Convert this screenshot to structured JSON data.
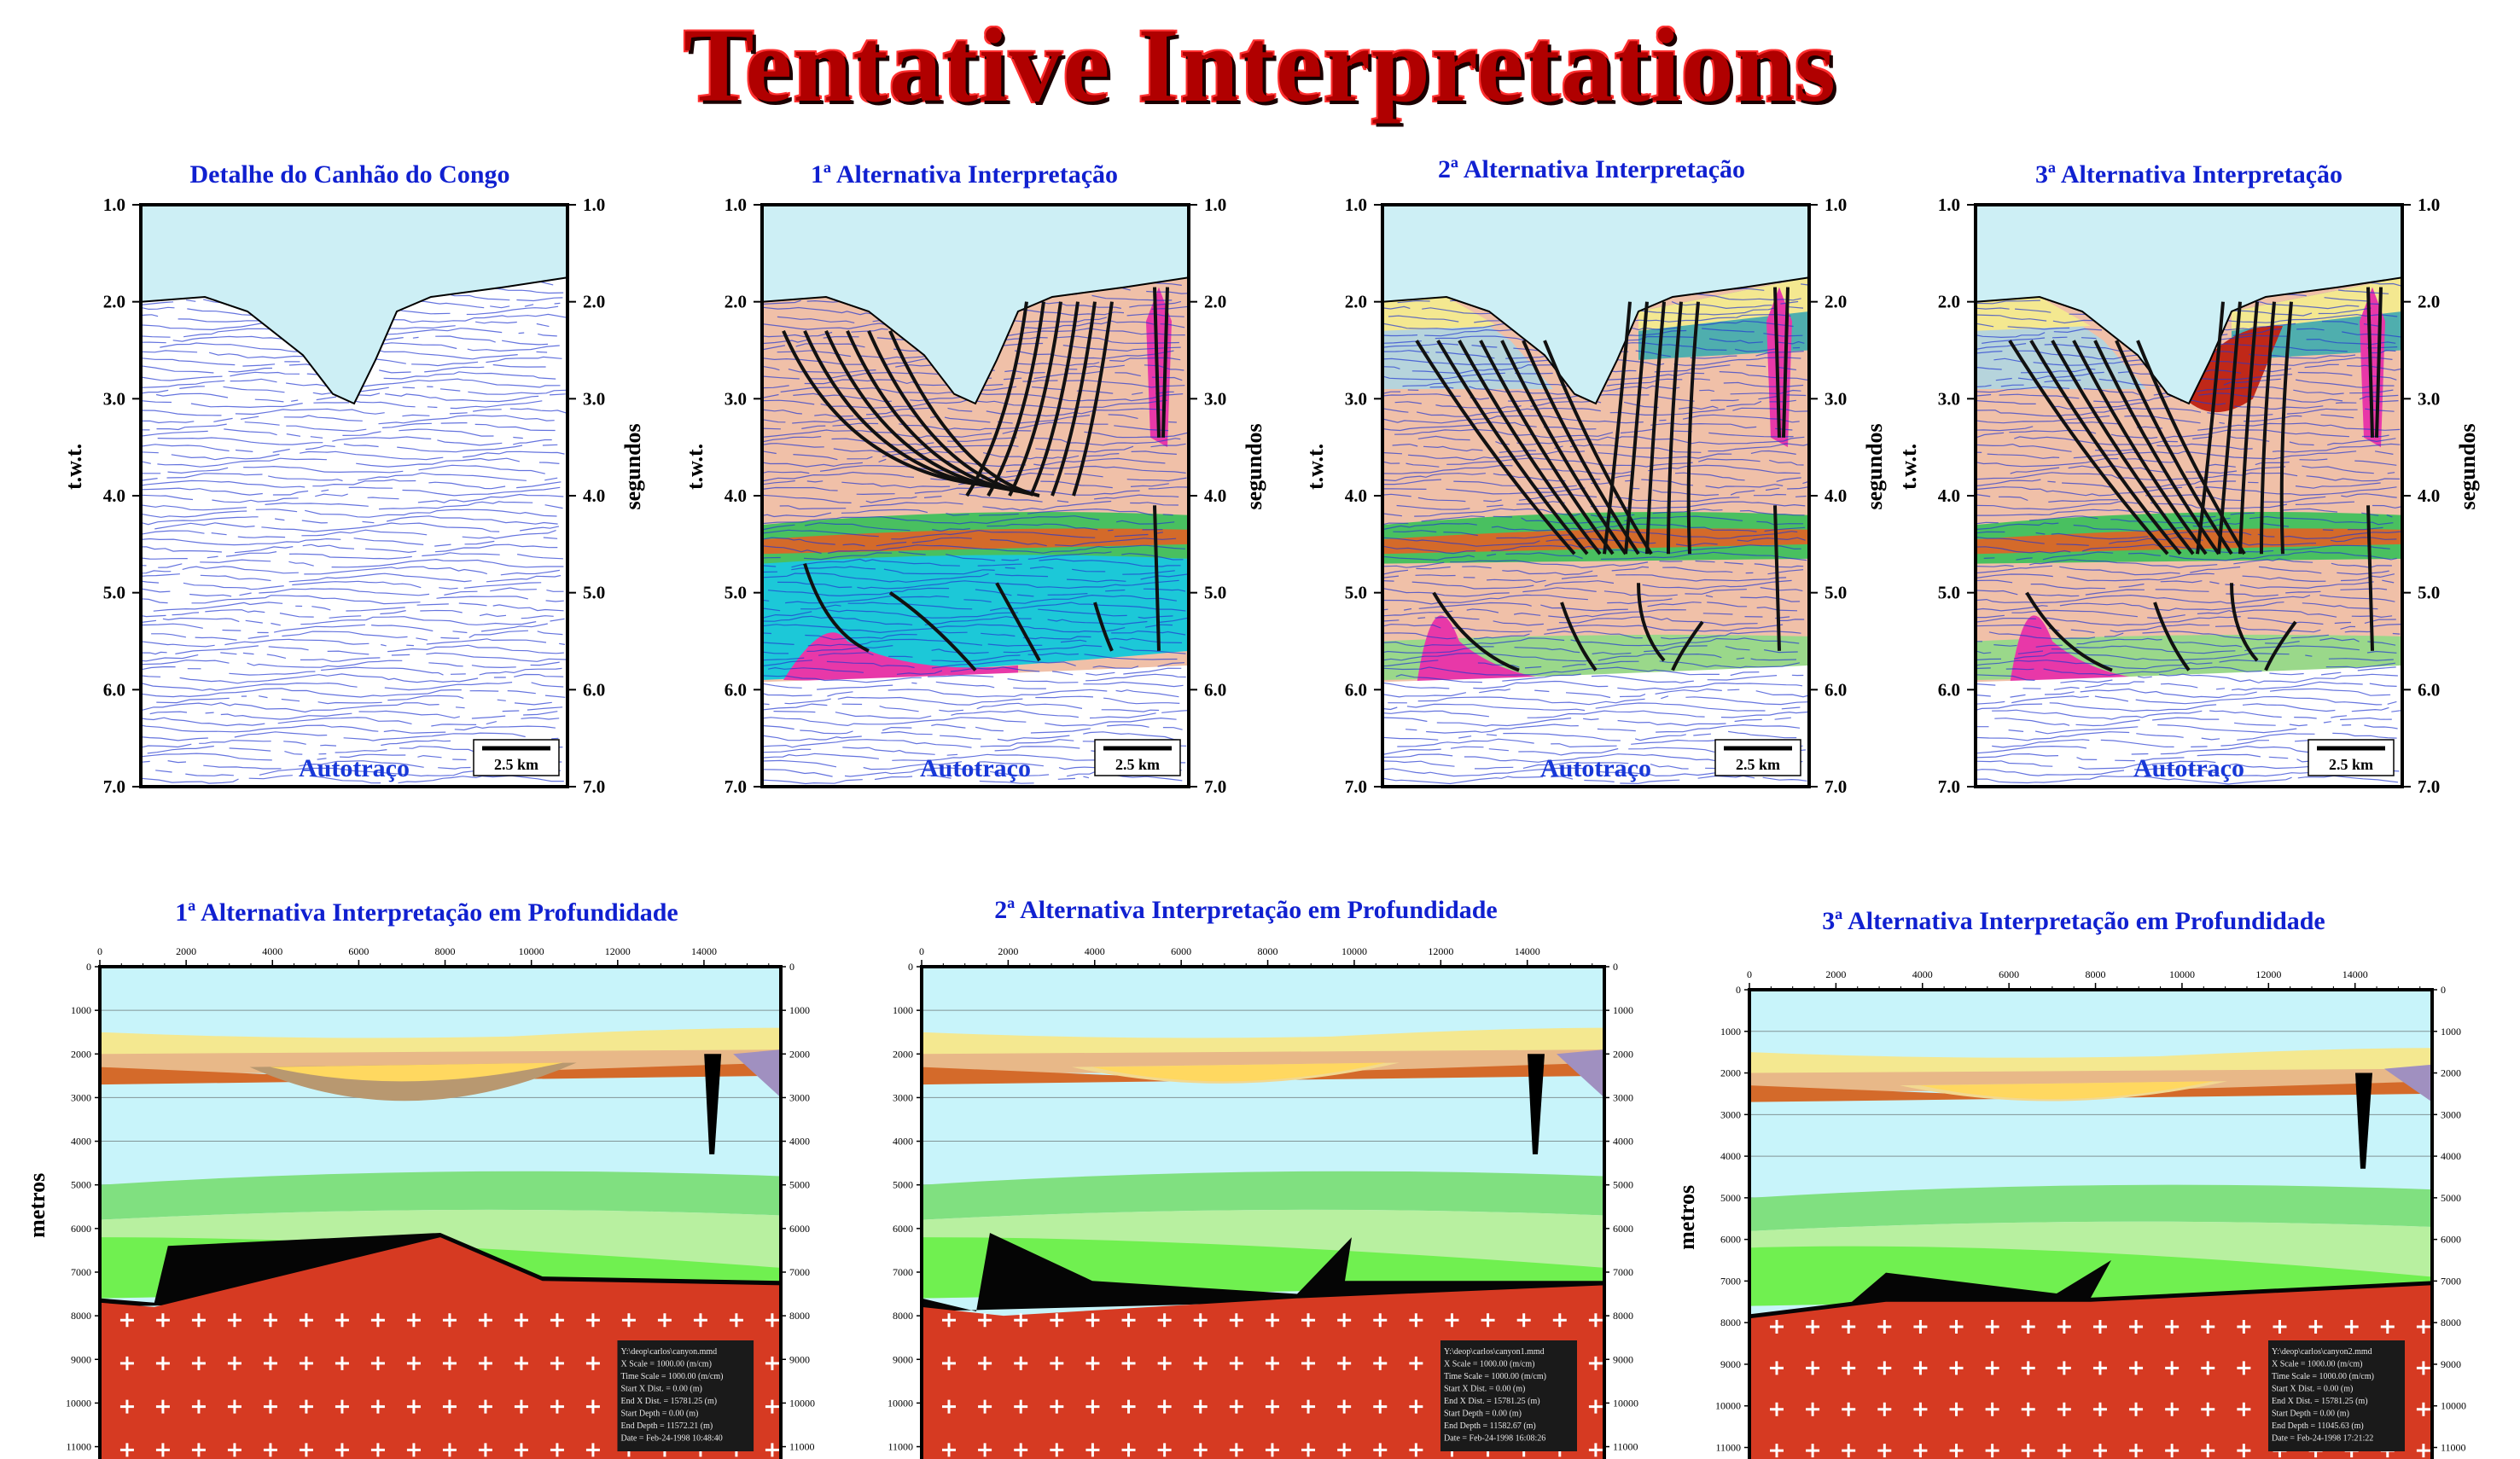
{
  "title": "Tentative Interpretations",
  "time_panels": [
    {
      "title": "Detalhe do Canhão do Congo",
      "kind": "raw"
    },
    {
      "title": "1ª Alternativa Interpretação",
      "kind": "alt1"
    },
    {
      "title": "2ª Alternativa Interpretação",
      "kind": "alt2"
    },
    {
      "title": "3ª Alternativa Interpretação",
      "kind": "alt3"
    }
  ],
  "time_axis": {
    "ticks": [
      "1.0",
      "2.0",
      "3.0",
      "4.0",
      "5.0",
      "6.0",
      "7.0"
    ],
    "left_label": "t.w.t.",
    "right_label": "segundos",
    "section_label": "Autotraço",
    "scale_label": "2.5 km"
  },
  "depth_panels": [
    {
      "title": "1ª Alternativa Interpretação em Profundidade",
      "info": [
        "Y:\\deop\\carlos\\canyon.mmd",
        "X Scale = 1000.00 (m/cm)",
        "Time Scale = 1000.00 (m/cm)",
        "Start X Dist. = 0.00 (m)",
        "End X Dist. = 15781.25 (m)",
        "Start Depth = 0.00 (m)",
        "End Depth = 11572.21 (m)",
        "Date = Feb-24-1998 10:48:40"
      ]
    },
    {
      "title": "2ª Alternativa Interpretação em Profundidade",
      "info": [
        "Y:\\deop\\carlos\\canyon1.mmd",
        "X Scale = 1000.00 (m/cm)",
        "Time Scale = 1000.00 (m/cm)",
        "Start X Dist. = 0.00 (m)",
        "End X Dist. = 15781.25 (m)",
        "Start Depth = 0.00 (m)",
        "End Depth = 11582.67 (m)",
        "Date = Feb-24-1998 16:08:26"
      ]
    },
    {
      "title": "3ª Alternativa Interpretação em Profundidade",
      "info": [
        "Y:\\deop\\carlos\\canyon2.mmd",
        "X Scale = 1000.00 (m/cm)",
        "Time Scale = 1000.00 (m/cm)",
        "Start X Dist. = 0.00 (m)",
        "End X Dist. = 15781.25 (m)",
        "Start Depth = 0.00 (m)",
        "End Depth = 11045.63 (m)",
        "Date = Feb-24-1998 17:21:22"
      ]
    }
  ],
  "depth_axis": {
    "x_ticks": [
      "0",
      "2000",
      "4000",
      "6000",
      "8000",
      "10000",
      "12000",
      "14000"
    ],
    "y_ticks": [
      "0",
      "1000",
      "2000",
      "3000",
      "4000",
      "5000",
      "6000",
      "7000",
      "8000",
      "9000",
      "10000",
      "11000"
    ],
    "y_label": "metros"
  },
  "colors": {
    "sea": "#cdeff5",
    "seismic": "#2238d0",
    "salmon": "#f0c0a8",
    "teal": "#1cc8d8",
    "green": "#49c060",
    "orange": "#d46a2a",
    "magenta": "#e838a8",
    "yellow": "#f4e890",
    "red_basement": "#d63a22",
    "light_green": "#b8f0a0",
    "bright_green": "#70f050",
    "light_blue": "#c8f4fa",
    "tan": "#b89870"
  }
}
